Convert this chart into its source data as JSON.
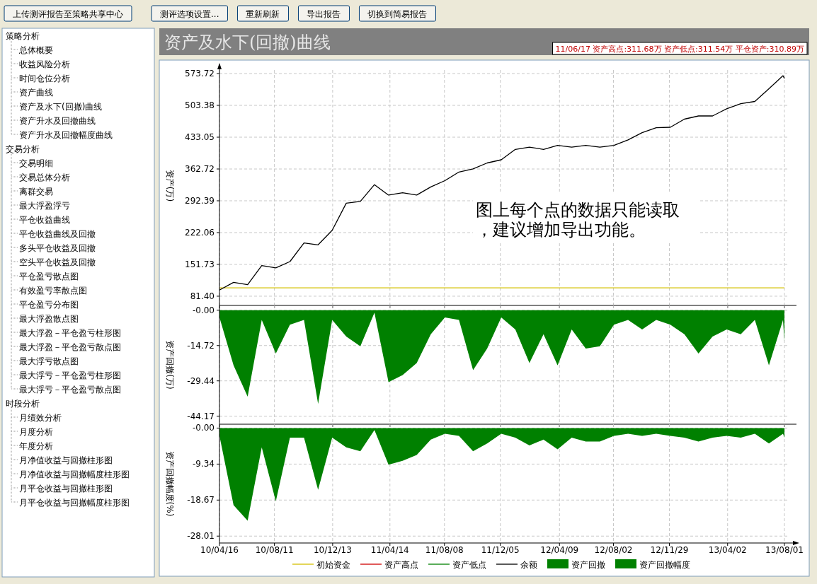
{
  "chart_data": [
    {
      "type": "other",
      "annotations": [
        "上传测评报告至策略共享中心",
        "测评选项设置...",
        "重新刷新",
        "导出报告",
        "切换到简易报告"
      ]
    },
    {
      "type": "other",
      "title": "策略分析",
      "annotations": [
        "总体概要",
        "收益风险分析",
        "时间仓位分析",
        "资产曲线",
        "资产及水下(回撤)曲线",
        "资产升水及回撤曲线",
        "资产升水及回撤幅度曲线"
      ]
    },
    {
      "type": "other",
      "title": "交易分析",
      "annotations": [
        "交易明细",
        "交易总体分析",
        "离群交易",
        "最大浮盈浮亏",
        "平仓收益曲线",
        "平仓收益曲线及回撤",
        "多头平仓收益及回撤",
        "空头平仓收益及回撤",
        "平仓盈亏散点图",
        "有效盈亏率散点图",
        "平仓盈亏分布图",
        "最大浮盈散点图",
        "最大浮盈－平仓盈亏柱形图",
        "最大浮盈－平仓盈亏散点图",
        "最大浮亏散点图",
        "最大浮亏－平仓盈亏柱形图",
        "最大浮亏－平仓盈亏散点图"
      ]
    },
    {
      "type": "other",
      "title": "时段分析",
      "annotations": [
        "月绩效分析",
        "月度分析",
        "年度分析",
        "月净值收益与回撤柱形图",
        "月净值收益与回撤幅度柱形图",
        "月平仓收益与回撤柱形图",
        "月平仓收益与回撤幅度柱形图"
      ]
    },
    {
      "type": "line",
      "title": "资产及水下(回撤)曲线",
      "subtitle": "11/06/17 资产高点:311.68万  资产低点:311.54万  平仓资产:310.89万",
      "ylabel": "资产(万)",
      "grid": true,
      "legend": "bottom",
      "tick_labels": "y",
      "annotations": [
        "图上每个点的数据只能读取，建议增加导出功能。"
      ],
      "xlim": [
        "2010-04-16",
        "2013-08-01"
      ],
      "xticks": [
        {
          "value": "2010-04-16",
          "label": null
        },
        {
          "value": "2010-08-11",
          "label": null
        },
        {
          "value": "2010-12-13",
          "label": null
        },
        {
          "value": "2011-04-14",
          "label": null
        },
        {
          "value": "2011-08-08",
          "label": null
        },
        {
          "value": "2011-12-05",
          "label": null
        },
        {
          "value": "2012-04-09",
          "label": null
        },
        {
          "value": "2012-08-02",
          "label": null
        },
        {
          "value": "2012-11-29",
          "label": null
        },
        {
          "value": "2013-04-02",
          "label": null
        },
        {
          "value": "2013-08-01",
          "label": null
        }
      ],
      "ylim": [
        61,
        591
      ],
      "yticks": [
        {
          "value": 81.4,
          "label": "81.40"
        },
        {
          "value": 151.73,
          "label": "151.73"
        },
        {
          "value": 222.06,
          "label": "222.06"
        },
        {
          "value": 292.39,
          "label": "292.39"
        },
        {
          "value": 362.72,
          "label": "362.72"
        },
        {
          "value": 433.05,
          "label": "433.05"
        },
        {
          "value": 503.38,
          "label": "503.38"
        },
        {
          "value": 573.72,
          "label": "573.72"
        }
      ],
      "x": [
        "2010-04-16",
        "2010-05-16",
        "2010-06-15",
        "2010-07-15",
        "2010-08-14",
        "2010-09-13",
        "2010-10-13",
        "2010-11-12",
        "2010-12-12",
        "2011-01-11",
        "2011-02-10",
        "2011-03-12",
        "2011-04-11",
        "2011-05-11",
        "2011-06-10",
        "2011-07-10",
        "2011-08-09",
        "2011-09-08",
        "2011-10-08",
        "2011-11-07",
        "2011-12-07",
        "2012-01-06",
        "2012-02-05",
        "2012-03-06",
        "2012-04-05",
        "2012-05-05",
        "2012-06-04",
        "2012-07-04",
        "2012-08-03",
        "2012-09-02",
        "2012-10-02",
        "2012-11-01",
        "2012-12-01",
        "2012-12-31",
        "2013-01-30",
        "2013-03-01",
        "2013-03-31",
        "2013-04-30",
        "2013-05-30",
        "2013-06-29",
        "2013-07-29",
        "2013-08-01"
      ],
      "series": [
        {
          "name": "初始资金",
          "color": "#d4c000",
          "x": [
            "2010-04-16",
            "2013-08-01"
          ],
          "values": [
            100,
            100
          ]
        },
        {
          "name": "资产高点",
          "color": "#d00000",
          "values": [
            null,
            null,
            null,
            null,
            null,
            null,
            null,
            null,
            null,
            null,
            null,
            null,
            null,
            null,
            null,
            null,
            null,
            null,
            null,
            null,
            null,
            null,
            null,
            null,
            null,
            null,
            null,
            null,
            null,
            null,
            null,
            null,
            null,
            null,
            null,
            null,
            null,
            null,
            null,
            null,
            null,
            null
          ]
        },
        {
          "name": "资产低点",
          "color": "#008000",
          "values": [
            null,
            null,
            null,
            null,
            null,
            null,
            null,
            null,
            null,
            null,
            null,
            null,
            null,
            null,
            null,
            null,
            null,
            null,
            null,
            null,
            null,
            null,
            null,
            null,
            null,
            null,
            null,
            null,
            null,
            null,
            null,
            null,
            null,
            null,
            null,
            null,
            null,
            null,
            null,
            null,
            null,
            null
          ]
        },
        {
          "name": "余额",
          "color": "#000000",
          "values": [
            95,
            112,
            107,
            149,
            144,
            158,
            199,
            195,
            227,
            287,
            291,
            328,
            305,
            310,
            305,
            323,
            337,
            356,
            363,
            376,
            383,
            406,
            411,
            406,
            415,
            411,
            415,
            411,
            415,
            427,
            443,
            454,
            455,
            473,
            480,
            480,
            496,
            507,
            512,
            540,
            569,
            563
          ]
        }
      ]
    },
    {
      "type": "area",
      "ylabel": "资产回撤(万)",
      "grid": true,
      "legend": "bottom",
      "tick_labels": "y",
      "xlim": [
        "2010-04-16",
        "2013-08-01"
      ],
      "xticks": [
        {
          "value": "2010-04-16",
          "label": null
        },
        {
          "value": "2010-08-11",
          "label": null
        },
        {
          "value": "2010-12-13",
          "label": null
        },
        {
          "value": "2011-04-14",
          "label": null
        },
        {
          "value": "2011-08-08",
          "label": null
        },
        {
          "value": "2011-12-05",
          "label": null
        },
        {
          "value": "2012-04-09",
          "label": null
        },
        {
          "value": "2012-08-02",
          "label": null
        },
        {
          "value": "2012-11-29",
          "label": null
        },
        {
          "value": "2013-04-02",
          "label": null
        },
        {
          "value": "2013-08-01",
          "label": null
        }
      ],
      "ylim": [
        -47.5,
        2
      ],
      "yticks": [
        {
          "value": 0,
          "label": "-0.00"
        },
        {
          "value": -14.72,
          "label": "-14.72"
        },
        {
          "value": -29.44,
          "label": "-29.44"
        },
        {
          "value": -44.17,
          "label": "-44.17"
        }
      ],
      "x": [
        "2010-04-16",
        "2010-05-16",
        "2010-06-15",
        "2010-07-15",
        "2010-08-14",
        "2010-09-13",
        "2010-10-13",
        "2010-11-12",
        "2010-12-12",
        "2011-01-11",
        "2011-02-10",
        "2011-03-12",
        "2011-04-11",
        "2011-05-11",
        "2011-06-10",
        "2011-07-10",
        "2011-08-09",
        "2011-09-08",
        "2011-10-08",
        "2011-11-07",
        "2011-12-07",
        "2012-01-06",
        "2012-02-05",
        "2012-03-06",
        "2012-04-05",
        "2012-05-05",
        "2012-06-04",
        "2012-07-04",
        "2012-08-03",
        "2012-09-02",
        "2012-10-02",
        "2012-11-01",
        "2012-12-01",
        "2012-12-31",
        "2013-01-30",
        "2013-03-01",
        "2013-03-31",
        "2013-04-30",
        "2013-05-30",
        "2013-06-29",
        "2013-07-29",
        "2013-08-01"
      ],
      "series": [
        {
          "name": "资产回撤",
          "color": "#008000",
          "values": [
            -3,
            -23,
            -36,
            -4,
            -18,
            -6,
            -4,
            -39,
            -4,
            -11,
            -15,
            -1,
            -30,
            -27,
            -22,
            -10,
            -3,
            -4,
            -25,
            -16,
            -3,
            -8,
            -22,
            -10,
            -23,
            -8,
            -16,
            -15,
            -6,
            -4,
            -8,
            -4,
            -6,
            -10,
            -18,
            -11,
            -8,
            -10,
            -4,
            -23,
            -4,
            -13
          ]
        }
      ]
    },
    {
      "type": "area",
      "ylabel": "资产回撤幅度(%)",
      "grid": true,
      "legend": "bottom",
      "xlim": [
        "2010-04-16",
        "2013-08-01"
      ],
      "xticks": [
        {
          "value": "2010-04-16",
          "label": "10/04/16"
        },
        {
          "value": "2010-08-11",
          "label": "10/08/11"
        },
        {
          "value": "2010-12-13",
          "label": "10/12/13"
        },
        {
          "value": "2011-04-14",
          "label": "11/04/14"
        },
        {
          "value": "2011-08-08",
          "label": "11/08/08"
        },
        {
          "value": "2011-12-05",
          "label": "11/12/05"
        },
        {
          "value": "2012-04-09",
          "label": "12/04/09"
        },
        {
          "value": "2012-08-02",
          "label": "12/08/02"
        },
        {
          "value": "2012-11-29",
          "label": "12/11/29"
        },
        {
          "value": "2013-04-02",
          "label": "13/04/02"
        },
        {
          "value": "2013-08-01",
          "label": "13/08/01"
        }
      ],
      "ylim": [
        -29.8,
        1
      ],
      "yticks": [
        {
          "value": 0,
          "label": "-0.00"
        },
        {
          "value": -9.34,
          "label": "-9.34"
        },
        {
          "value": -18.67,
          "label": "-18.67"
        },
        {
          "value": -28.01,
          "label": "-28.01"
        }
      ],
      "x": [
        "2010-04-16",
        "2010-05-16",
        "2010-06-15",
        "2010-07-15",
        "2010-08-14",
        "2010-09-13",
        "2010-10-13",
        "2010-11-12",
        "2010-12-12",
        "2011-01-11",
        "2011-02-10",
        "2011-03-12",
        "2011-04-11",
        "2011-05-11",
        "2011-06-10",
        "2011-07-10",
        "2011-08-09",
        "2011-09-08",
        "2011-10-08",
        "2011-11-07",
        "2011-12-07",
        "2012-01-06",
        "2012-02-05",
        "2012-03-06",
        "2012-04-05",
        "2012-05-05",
        "2012-06-04",
        "2012-07-04",
        "2012-08-03",
        "2012-09-02",
        "2012-10-02",
        "2012-11-01",
        "2012-12-01",
        "2012-12-31",
        "2013-01-30",
        "2013-03-01",
        "2013-03-31",
        "2013-04-30",
        "2013-05-30",
        "2013-06-29",
        "2013-07-29",
        "2013-08-01"
      ],
      "series": [
        {
          "name": "资产回撤幅度",
          "color": "#008000",
          "values": [
            -2,
            -20,
            -24,
            -5,
            -19,
            -2.5,
            -2.5,
            -16,
            -2.5,
            -5,
            -6,
            -0.5,
            -9.5,
            -8.5,
            -7,
            -3,
            -1.5,
            -2,
            -6,
            -4,
            -1.5,
            -2.5,
            -4.5,
            -3,
            -5.5,
            -2.5,
            -3.5,
            -3.5,
            -2,
            -1.5,
            -2,
            -1.5,
            -2,
            -2.5,
            -3.5,
            -2.5,
            -2,
            -2.5,
            -1.5,
            -4,
            -1.5,
            -2.5
          ]
        }
      ]
    }
  ]
}
